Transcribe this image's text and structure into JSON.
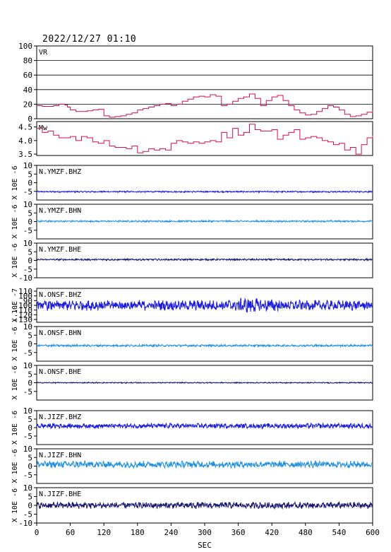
{
  "header": {
    "timestamp": "2022/12/27 01:10"
  },
  "chart_data": {
    "type": "line",
    "xlabel": "SEC",
    "xlim": [
      0,
      600
    ],
    "xticks": [
      "0",
      "60",
      "120",
      "180",
      "240",
      "300",
      "360",
      "420",
      "480",
      "540",
      "600"
    ],
    "panels": [
      {
        "label": "VR",
        "ylim": [
          0,
          100
        ],
        "yticks": [
          "0",
          "20",
          "40",
          "60",
          "80",
          "100"
        ],
        "grid": true,
        "color": "#d0104a",
        "step": true,
        "x": [
          0,
          10,
          20,
          30,
          40,
          45,
          50,
          55,
          60,
          70,
          80,
          90,
          100,
          110,
          120,
          130,
          140,
          150,
          160,
          170,
          180,
          190,
          200,
          210,
          220,
          230,
          240,
          250,
          260,
          270,
          280,
          290,
          300,
          310,
          320,
          330,
          340,
          350,
          360,
          370,
          380,
          390,
          400,
          410,
          420,
          430,
          440,
          450,
          460,
          470,
          480,
          490,
          500,
          510,
          520,
          530,
          540,
          550,
          560,
          570,
          580,
          590,
          600
        ],
        "values": [
          18,
          17,
          17,
          18,
          20,
          20,
          19,
          16,
          12,
          10,
          10,
          11,
          12,
          13,
          4,
          2,
          3,
          4,
          6,
          8,
          12,
          14,
          16,
          18,
          20,
          21,
          18,
          20,
          24,
          27,
          30,
          31,
          30,
          33,
          31,
          18,
          20,
          24,
          28,
          30,
          34,
          28,
          18,
          25,
          30,
          32,
          25,
          18,
          12,
          8,
          5,
          6,
          10,
          14,
          18,
          16,
          12,
          6,
          3,
          4,
          6,
          9,
          11
        ]
      },
      {
        "label": "Mw",
        "ylim": [
          3.45,
          4.7
        ],
        "yticks": [
          "3.5",
          "4.0",
          "4.5"
        ],
        "grid": false,
        "color": "#d0104a",
        "step": true,
        "x": [
          0,
          10,
          20,
          30,
          40,
          50,
          60,
          70,
          80,
          90,
          100,
          110,
          120,
          130,
          140,
          150,
          160,
          170,
          180,
          190,
          200,
          210,
          220,
          230,
          240,
          250,
          260,
          270,
          280,
          290,
          300,
          310,
          320,
          330,
          340,
          350,
          360,
          370,
          380,
          390,
          400,
          410,
          420,
          430,
          440,
          450,
          460,
          470,
          480,
          490,
          500,
          510,
          520,
          530,
          540,
          550,
          560,
          570,
          580,
          590,
          600
        ],
        "values": [
          4.45,
          4.3,
          4.35,
          4.2,
          4.1,
          4.1,
          4.15,
          4.0,
          4.15,
          4.1,
          3.95,
          3.9,
          4.0,
          3.8,
          3.75,
          3.75,
          3.7,
          3.8,
          3.55,
          3.6,
          3.7,
          3.65,
          3.7,
          3.65,
          3.9,
          4.0,
          3.95,
          3.9,
          3.95,
          3.9,
          3.95,
          4.0,
          3.95,
          4.3,
          4.1,
          4.45,
          4.2,
          4.3,
          4.6,
          4.4,
          4.35,
          4.35,
          4.4,
          4.05,
          4.2,
          4.3,
          4.4,
          4.05,
          4.1,
          4.15,
          4.1,
          4.0,
          3.95,
          3.85,
          3.9,
          3.65,
          3.75,
          3.5,
          3.85,
          4.1,
          4.2
        ]
      },
      {
        "label": "N.YMZF.BHZ",
        "ylim": [
          -10,
          10
        ],
        "yticks": [
          "-5",
          "0",
          "5",
          "10"
        ],
        "yaxis_label": "X 10E -6",
        "color": "#1a1adc",
        "offset": -5.2,
        "amp": 0.35
      },
      {
        "label": "N.YMZF.BHN",
        "ylim": [
          -10,
          10
        ],
        "yticks": [
          "-5",
          "0",
          "5",
          "10"
        ],
        "yaxis_label": "X 10E -6",
        "color": "#2090e0",
        "offset": 0.2,
        "amp": 0.4
      },
      {
        "label": "N.YMZF.BHE",
        "ylim": [
          -10,
          10
        ],
        "yticks": [
          "-10",
          "-5",
          "0",
          "5",
          "10"
        ],
        "yaxis_label": "X 10E -6",
        "color": "#14146e",
        "offset": 0.5,
        "amp": 0.4
      },
      {
        "label": "N.ONSF.BHZ",
        "ylim": [
          -130,
          110
        ],
        "yticks": [
          "-130",
          "-120",
          "-110",
          "-100",
          "90",
          "100",
          "110"
        ],
        "yaxis_label": "X 10E -7",
        "color": "#1a1adc",
        "offset": 0,
        "amp": 35
      },
      {
        "label": "N.ONSF.BHN",
        "ylim": [
          -10,
          10
        ],
        "yticks": [
          "-5",
          "0",
          "5",
          "10"
        ],
        "yaxis_label": "X 10E -6",
        "color": "#2090e0",
        "offset": -1.0,
        "amp": 0.5
      },
      {
        "label": "N.ONSF.BHE",
        "ylim": [
          -10,
          10
        ],
        "yticks": [
          "-5",
          "0",
          "5",
          "10"
        ],
        "yaxis_label": "X 10E -6",
        "color": "#14146e",
        "offset": 0.0,
        "amp": 0.25
      },
      {
        "label": "N.JIZF.BHZ",
        "ylim": [
          -10,
          10
        ],
        "yticks": [
          "-5",
          "0",
          "5",
          "10"
        ],
        "yaxis_label": "X 10E -6",
        "color": "#1a1adc",
        "offset": 1.0,
        "amp": 1.2
      },
      {
        "label": "N.JIZF.BHN",
        "ylim": [
          -10,
          10
        ],
        "yticks": [
          "-5",
          "0",
          "5",
          "10"
        ],
        "yaxis_label": "X 10E -6",
        "color": "#2090e0",
        "offset": 1.0,
        "amp": 1.6
      },
      {
        "label": "N.JIZF.BHE",
        "ylim": [
          -10,
          10
        ],
        "yticks": [
          "-10",
          "-5",
          "0",
          "5",
          "10"
        ],
        "yaxis_label": "X 10E -6",
        "color": "#14146e",
        "offset": 0.0,
        "amp": 1.5
      }
    ]
  }
}
